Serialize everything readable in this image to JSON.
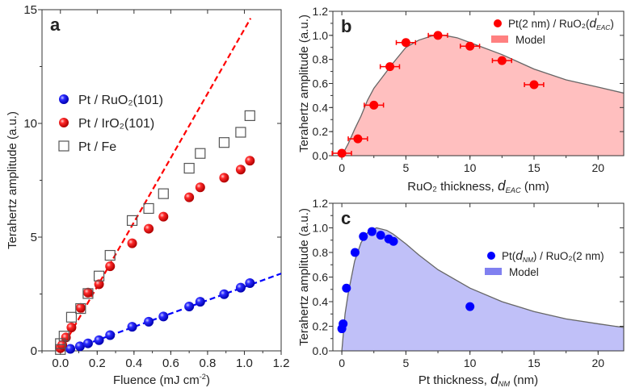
{
  "chart_data": [
    {
      "panel_label": "a",
      "type": "scatter",
      "xlabel": {
        "pre": "Fluence (mJ cm",
        "sup": "-2",
        "post": ")"
      },
      "ylabel": "Terahertz amplitude (a.u.)",
      "xlim": [
        -0.1,
        1.2
      ],
      "ylim": [
        0,
        15
      ],
      "xticks": [
        "0.0",
        "0.2",
        "0.4",
        "0.6",
        "0.8",
        "1.0",
        "1.2"
      ],
      "yticks": [
        "0",
        "5",
        "10",
        "15"
      ],
      "legend": "center-left",
      "series": [
        {
          "name": "Pt / RuO₂(101)",
          "color": "#0000ff",
          "marker": "sphere",
          "x": [
            0.054,
            0.106,
            0.15,
            0.21,
            0.27,
            0.39,
            0.48,
            0.56,
            0.7,
            0.76,
            0.89,
            0.98,
            1.03
          ],
          "y": [
            0.09,
            0.2,
            0.33,
            0.47,
            0.69,
            1.06,
            1.28,
            1.51,
            1.95,
            2.16,
            2.49,
            2.78,
            2.98
          ]
        },
        {
          "name": "Pt / IrO₂(101)",
          "color": "#ff0000",
          "marker": "sphere",
          "x": [
            0.0,
            0.01,
            0.03,
            0.06,
            0.11,
            0.15,
            0.21,
            0.27,
            0.39,
            0.48,
            0.56,
            0.7,
            0.76,
            0.89,
            0.98,
            1.03
          ],
          "y": [
            0.12,
            0.26,
            0.59,
            1.03,
            1.89,
            2.56,
            2.93,
            3.72,
            4.73,
            5.37,
            5.9,
            6.75,
            7.19,
            7.61,
            7.97,
            8.36
          ]
        },
        {
          "name": "Pt / Fe",
          "color": "#555555",
          "marker": "open-square",
          "x": [
            0.0,
            0.0,
            0.02,
            0.06,
            0.11,
            0.15,
            0.21,
            0.27,
            0.39,
            0.48,
            0.56,
            0.7,
            0.76,
            0.89,
            0.98,
            1.03
          ],
          "y": [
            0.06,
            0.32,
            0.65,
            1.48,
            1.86,
            2.52,
            3.29,
            4.2,
            5.73,
            6.26,
            6.91,
            8.03,
            8.68,
            9.16,
            9.61,
            10.34
          ]
        }
      ],
      "fits": [
        {
          "color": "#ff0000",
          "style": "dashed",
          "x": [
            0.0,
            1.034
          ],
          "y": [
            0.0,
            14.62
          ]
        },
        {
          "color": "#0000ff",
          "style": "dashed",
          "x": [
            0.04,
            1.2
          ],
          "y": [
            0.0,
            3.4
          ]
        }
      ]
    },
    {
      "panel_label": "b",
      "type": "scatter",
      "xlabel": {
        "pre": "RuO₂ thickness, ",
        "var": "d",
        "sub": "EAC",
        "post": " (nm)"
      },
      "ylabel": "Terahertz amplitude (a.u.)",
      "xlim": [
        -0.7,
        22
      ],
      "ylim": [
        0,
        1.2
      ],
      "xticks": [
        "0",
        "5",
        "10",
        "15",
        "20"
      ],
      "yticks": [
        "0.0",
        "0.2",
        "0.4",
        "0.6",
        "0.8",
        "1.0",
        "1.2"
      ],
      "legend": "top-right",
      "series": [
        {
          "name": {
            "pre": "Pt(2 nm) / RuO₂(",
            "var": "d",
            "sub": "EAC",
            "post": ")"
          },
          "color": "#ff0000",
          "marker": "circle",
          "x": [
            0,
            1.25,
            2.5,
            3.75,
            5,
            7.5,
            10,
            12.5,
            15
          ],
          "y": [
            0.02,
            0.14,
            0.42,
            0.74,
            0.94,
            1.0,
            0.91,
            0.79,
            0.59
          ],
          "xerr": 0.75
        }
      ],
      "model": {
        "name": "Model",
        "fill": "#ffbfbf",
        "swatch": "#ff8080",
        "line": "#666666",
        "x": [
          0,
          0.5,
          1,
          1.5,
          2,
          2.5,
          3,
          4,
          5,
          6,
          7,
          7.5,
          8,
          9,
          10,
          12.5,
          15,
          17.5,
          20,
          22
        ],
        "y": [
          0,
          0.1,
          0.22,
          0.33,
          0.46,
          0.56,
          0.63,
          0.77,
          0.9,
          0.96,
          0.995,
          1.0,
          1.0,
          0.98,
          0.94,
          0.84,
          0.72,
          0.63,
          0.57,
          0.52
        ]
      }
    },
    {
      "panel_label": "c",
      "type": "scatter",
      "xlabel": {
        "pre": "Pt thickness, ",
        "var": "d",
        "sub": "NM",
        "post": " (nm)"
      },
      "ylabel": "Terahertz amplitude (a.u.)",
      "xlim": [
        -0.7,
        22
      ],
      "ylim": [
        0,
        1.2
      ],
      "xticks": [
        "0",
        "5",
        "10",
        "15",
        "20"
      ],
      "yticks": [
        "0.0",
        "0.2",
        "0.4",
        "0.6",
        "0.8",
        "1.0",
        "1.2"
      ],
      "legend": "center-right",
      "series": [
        {
          "name": {
            "pre": "Pt(",
            "var": "d",
            "sub": "NM",
            "post": ") / RuO₂(2 nm)"
          },
          "color": "#0000ff",
          "marker": "circle",
          "x": [
            0,
            0.1,
            0.36,
            1.03,
            1.68,
            2.35,
            3.03,
            3.66,
            4.03,
            10.0
          ],
          "y": [
            0.18,
            0.22,
            0.51,
            0.8,
            0.93,
            0.97,
            0.94,
            0.91,
            0.89,
            0.36
          ]
        }
      ],
      "model": {
        "name": "Model",
        "fill": "#c0c0f8",
        "swatch": "#8080f0",
        "line": "#666666",
        "x": [
          0,
          0.25,
          0.5,
          1,
          1.5,
          2,
          2.7,
          3.5,
          4,
          5,
          6,
          7.5,
          10,
          12.5,
          15,
          17.5,
          20,
          22
        ],
        "y": [
          0,
          0.3,
          0.47,
          0.73,
          0.88,
          0.96,
          1.0,
          0.98,
          0.95,
          0.87,
          0.78,
          0.66,
          0.51,
          0.4,
          0.32,
          0.26,
          0.22,
          0.19
        ]
      }
    }
  ]
}
